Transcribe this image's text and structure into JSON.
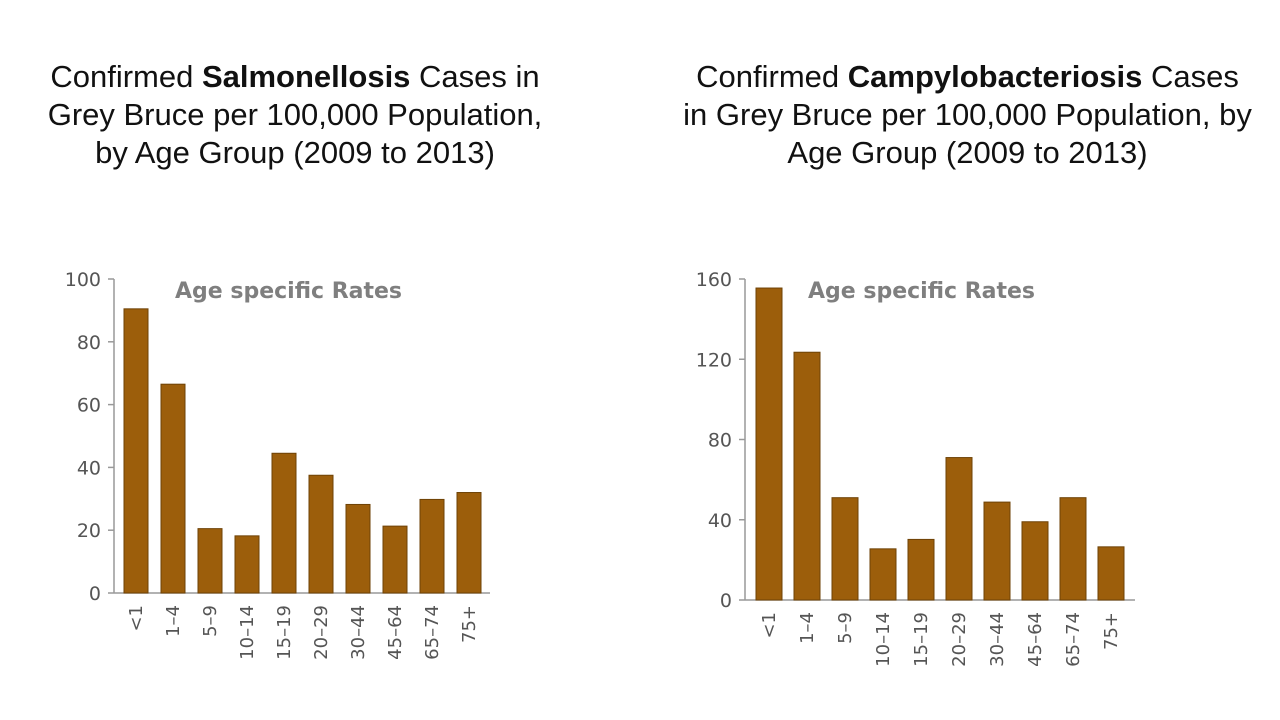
{
  "colors": {
    "bar": "#9c5e0b",
    "bar_stroke": "#6e4206",
    "axis": "#999999"
  },
  "charts": [
    {
      "title_prefix": "Confirmed ",
      "title_bold": "Salmonellosis",
      "title_suffix": " Cases in Grey Bruce per 100,000 Population, by Age Group (2009 to 2013)"
    },
    {
      "title_prefix": "Confirmed ",
      "title_bold": "Campylobacteriosis",
      "title_suffix": " Cases in Grey Bruce per 100,000 Population, by Age Group (2009 to 2013)"
    }
  ],
  "chart_data": [
    {
      "type": "bar",
      "title": "Confirmed Salmonellosis Cases in Grey Bruce per 100,000 Population, by Age Group (2009 to 2013)",
      "inner_title": "Age specific Rates",
      "categories": [
        "<1",
        "1–4",
        "5–9",
        "10–14",
        "15–19",
        "20–29",
        "30–44",
        "45–64",
        "65–74",
        "75+"
      ],
      "values": [
        90.5,
        66.5,
        20.5,
        18.2,
        44.5,
        37.5,
        28.2,
        21.3,
        29.8,
        32
      ],
      "ylim": [
        0,
        100
      ],
      "yticks": [
        0,
        20,
        40,
        60,
        80,
        100
      ],
      "grid": false,
      "xlabel": "",
      "ylabel": ""
    },
    {
      "type": "bar",
      "title": "Confirmed Campylobacteriosis Cases in Grey Bruce per 100,000 Population, by Age Group (2009 to 2013)",
      "inner_title": "Age specific Rates",
      "categories": [
        "<1",
        "1–4",
        "5–9",
        "10–14",
        "15–19",
        "20–29",
        "30–44",
        "45–64",
        "65–74",
        "75+"
      ],
      "values": [
        155.5,
        123.5,
        51,
        25.5,
        30.2,
        71,
        48.8,
        39,
        51,
        26.5
      ],
      "ylim": [
        0,
        160
      ],
      "yticks": [
        0,
        40,
        80,
        120,
        160
      ],
      "grid": false,
      "xlabel": "",
      "ylabel": ""
    }
  ]
}
